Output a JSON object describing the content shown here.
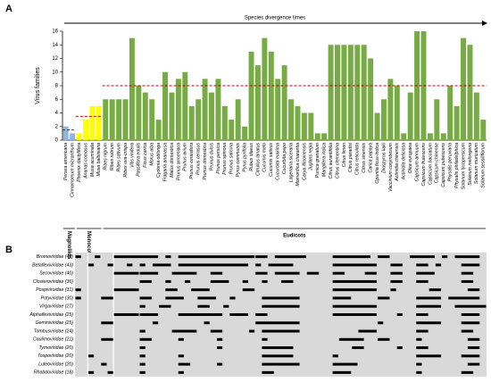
{
  "chart_data": {
    "type": "bar",
    "panel": "A",
    "arrow_label": "Species divergence times",
    "y_label": "Virus families",
    "categories": [
      "Persea americana",
      "Cinnamomum micranthum",
      "Phoenix dactylifera",
      "Ananas comosus",
      "Musa acuminata",
      "Musa balbisiana",
      "Ribes nigrum",
      "Ribes rubrum",
      "Ribes sativum",
      "Ribes uva-crispa",
      "Vitis vinifera",
      "Passiflora edulis",
      "Ficus carica",
      "Morus alba",
      "Cydonia oblonga",
      "Fragaria ananassa",
      "Malus domestica",
      "Prunus armeniaca",
      "Prunus avium",
      "Prunus cerasifera",
      "Prunus cerasus",
      "Prunus domestica",
      "Prunus dulcis",
      "Prunus persica",
      "Prunus spinosa",
      "Prunus salicina",
      "Pyrus communis",
      "Pyrus pyrifolia",
      "Rubus idaeus",
      "Citrullus lanatus",
      "Cucumis melo",
      "Cucumis sativus",
      "Cucurbita maxima",
      "Cucurbita pepo",
      "Lagenaria siceraria",
      "Momordica charantia",
      "Carya illinoinensis",
      "Juglans regia",
      "Punica granatum",
      "Mangifera indica",
      "Citrus aurantifolia",
      "Citrus clementina",
      "Citrus limon",
      "Citrus paradisi",
      "Citrus reticulata",
      "Citrus sinensis",
      "Carica papaya",
      "Opuntia ficus-indica",
      "Diospyros kaki",
      "Vaccinium corymbosum",
      "Actinidia chinensis",
      "Actinidia deliciosa",
      "Olea europaea",
      "Capsicum annuum",
      "Capsicum frutescens",
      "Capsicum baccatum",
      "Capsicum chinense",
      "Capsicum pubescens",
      "Physalis peruviana",
      "Physalis philadelphica",
      "Solanum lycopersicum",
      "Solanum melongena",
      "Solanum muricatum",
      "Solanum sessiliflorum"
    ],
    "values": [
      2,
      1,
      1,
      3,
      5,
      5,
      6,
      6,
      6,
      6,
      15,
      8,
      7,
      6,
      3,
      10,
      7,
      9,
      10,
      5,
      6,
      9,
      7,
      9,
      5,
      3,
      6,
      2,
      13,
      11,
      15,
      13,
      9,
      11,
      6,
      5,
      4,
      4,
      1,
      1,
      14,
      14,
      14,
      14,
      14,
      14,
      12,
      4,
      6,
      9,
      8,
      1,
      7,
      16,
      16,
      1,
      6,
      1,
      8,
      5,
      15,
      14,
      7,
      3
    ],
    "groups": [
      {
        "name": "Magnoliids",
        "first": 0,
        "last": 1,
        "color": "#8eb4e3",
        "mean": 1.5
      },
      {
        "name": "Monocots",
        "first": 2,
        "last": 5,
        "color": "#ffff00",
        "mean": 3.5
      },
      {
        "name": "Eudicots",
        "first": 6,
        "last": 63,
        "color": "#77ab43",
        "mean": 8
      }
    ],
    "mean_color": "#c00000",
    "ylim": [
      0,
      16
    ],
    "yticks": [
      0,
      2,
      4,
      6,
      8,
      10,
      12,
      14,
      16
    ]
  },
  "matrix": {
    "panel": "B",
    "background": "#d9d9d9",
    "mark_color": "#000000",
    "rows": [
      {
        "label": "Bromoviridae (46)",
        "segments": [
          [
            0,
            0
          ],
          [
            3,
            3
          ],
          [
            6,
            12
          ],
          [
            14,
            14
          ],
          [
            16,
            27
          ],
          [
            28,
            29
          ],
          [
            31,
            35
          ],
          [
            40,
            45
          ],
          [
            47,
            48
          ],
          [
            52,
            55
          ],
          [
            57,
            57
          ],
          [
            59,
            62
          ]
        ]
      },
      {
        "label": "Betaflexiviridae (43)",
        "segments": [
          [
            2,
            2
          ],
          [
            5,
            5
          ],
          [
            8,
            8
          ],
          [
            10,
            10
          ],
          [
            12,
            14
          ],
          [
            16,
            26
          ],
          [
            28,
            28
          ],
          [
            30,
            33
          ],
          [
            40,
            46
          ],
          [
            49,
            50
          ],
          [
            53,
            54
          ],
          [
            56,
            56
          ],
          [
            60,
            62
          ]
        ]
      },
      {
        "label": "Secoviridae (40)",
        "segments": [
          [
            6,
            9
          ],
          [
            10,
            12
          ],
          [
            15,
            18
          ],
          [
            21,
            22
          ],
          [
            28,
            29
          ],
          [
            31,
            34
          ],
          [
            36,
            37
          ],
          [
            40,
            41
          ],
          [
            45,
            46
          ],
          [
            49,
            50
          ],
          [
            53,
            55
          ],
          [
            60,
            61
          ]
        ]
      },
      {
        "label": "Closteroviridae (36)",
        "segments": [
          [
            10,
            11
          ],
          [
            14,
            14
          ],
          [
            17,
            17
          ],
          [
            21,
            23
          ],
          [
            26,
            26
          ],
          [
            29,
            29
          ],
          [
            32,
            33
          ],
          [
            40,
            46
          ],
          [
            49,
            50
          ],
          [
            53,
            54
          ],
          [
            60,
            61
          ]
        ]
      },
      {
        "label": "Pospiviroidae (31)",
        "segments": [
          [
            0,
            0
          ],
          [
            6,
            9
          ],
          [
            14,
            15
          ],
          [
            18,
            20
          ],
          [
            26,
            27
          ],
          [
            40,
            46
          ],
          [
            49,
            49
          ],
          [
            55,
            56
          ],
          [
            61,
            62
          ]
        ]
      },
      {
        "label": "Potyviridae (30)",
        "segments": [
          [
            0,
            0
          ],
          [
            4,
            5
          ],
          [
            10,
            11
          ],
          [
            14,
            16
          ],
          [
            19,
            21
          ],
          [
            24,
            24
          ],
          [
            29,
            34
          ],
          [
            40,
            42
          ],
          [
            47,
            48
          ],
          [
            53,
            56
          ],
          [
            58,
            62
          ]
        ]
      },
      {
        "label": "Virgaviridae (27)",
        "segments": [
          [
            10,
            10
          ],
          [
            13,
            14
          ],
          [
            19,
            20
          ],
          [
            23,
            23
          ],
          [
            29,
            34
          ],
          [
            40,
            46
          ],
          [
            53,
            56
          ],
          [
            59,
            63
          ]
        ]
      },
      {
        "label": "Alphaflexiviridae (25)",
        "segments": [
          [
            6,
            9
          ],
          [
            10,
            12
          ],
          [
            16,
            22
          ],
          [
            24,
            26
          ],
          [
            28,
            29
          ],
          [
            40,
            46
          ],
          [
            50,
            50
          ],
          [
            53,
            54
          ],
          [
            60,
            62
          ]
        ]
      },
      {
        "label": "Geminiviridae (25)",
        "segments": [
          [
            4,
            5
          ],
          [
            12,
            12
          ],
          [
            20,
            20
          ],
          [
            28,
            34
          ],
          [
            47,
            47
          ],
          [
            53,
            56
          ],
          [
            60,
            62
          ]
        ]
      },
      {
        "label": "Tombusviridae (24)",
        "segments": [
          [
            10,
            10
          ],
          [
            15,
            18
          ],
          [
            21,
            22
          ],
          [
            27,
            27
          ],
          [
            29,
            34
          ],
          [
            44,
            46
          ],
          [
            53,
            54
          ],
          [
            60,
            61
          ]
        ]
      },
      {
        "label": "Caulimoviridae (21)",
        "segments": [
          [
            4,
            5
          ],
          [
            10,
            11
          ],
          [
            16,
            16
          ],
          [
            22,
            22
          ],
          [
            29,
            29
          ],
          [
            41,
            44
          ],
          [
            47,
            48
          ],
          [
            53,
            53
          ],
          [
            61,
            62
          ]
        ]
      },
      {
        "label": "Tymoviridae (20)",
        "segments": [
          [
            10,
            10
          ],
          [
            22,
            22
          ],
          [
            29,
            33
          ],
          [
            43,
            44
          ],
          [
            50,
            50
          ],
          [
            53,
            54
          ],
          [
            61,
            62
          ]
        ]
      },
      {
        "label": "Tospoviridae (20)",
        "segments": [
          [
            2,
            2
          ],
          [
            10,
            10
          ],
          [
            16,
            16
          ],
          [
            29,
            33
          ],
          [
            40,
            40
          ],
          [
            53,
            56
          ],
          [
            60,
            62
          ]
        ]
      },
      {
        "label": "Luteoviridae (20)",
        "segments": [
          [
            4,
            4
          ],
          [
            10,
            10
          ],
          [
            16,
            17
          ],
          [
            22,
            22
          ],
          [
            29,
            34
          ],
          [
            40,
            43
          ],
          [
            53,
            53
          ],
          [
            61,
            62
          ]
        ]
      },
      {
        "label": "Rhabdoviridae (18)",
        "segments": [
          [
            2,
            2
          ],
          [
            5,
            5
          ],
          [
            10,
            10
          ],
          [
            16,
            16
          ],
          [
            29,
            30
          ],
          [
            40,
            42
          ],
          [
            53,
            53
          ],
          [
            60,
            61
          ]
        ]
      }
    ]
  }
}
